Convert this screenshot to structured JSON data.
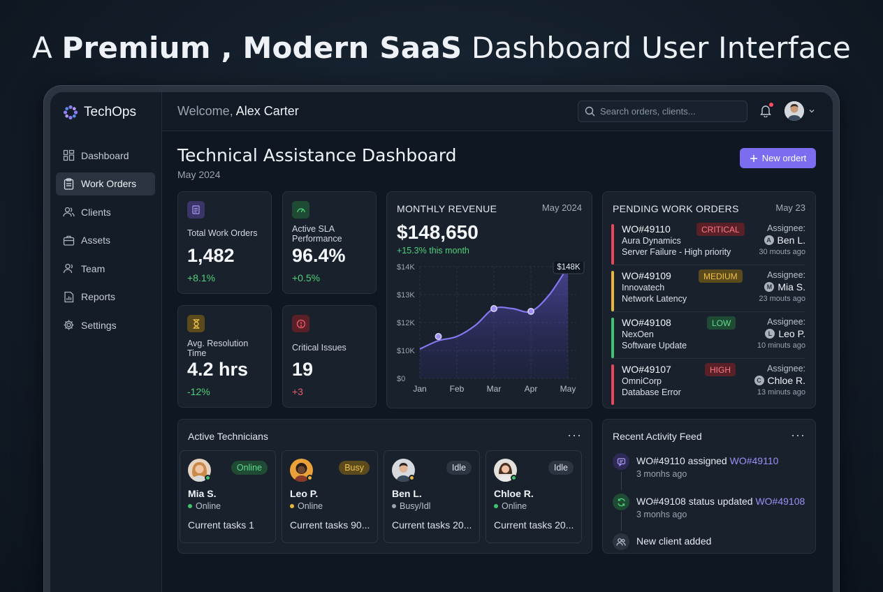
{
  "headline": {
    "prefix": "A ",
    "bold": "Premium , Modern SaaS",
    "suffix": " Dashboard User Interface"
  },
  "brand": {
    "name": "TechOps"
  },
  "sidebar": {
    "items": [
      {
        "label": "Dashboard",
        "icon": "dashboard-icon"
      },
      {
        "label": "Work Orders",
        "icon": "clipboard-icon",
        "active": true
      },
      {
        "label": "Clients",
        "icon": "users-icon"
      },
      {
        "label": "Assets",
        "icon": "briefcase-icon"
      },
      {
        "label": "Team",
        "icon": "team-icon"
      },
      {
        "label": "Reports",
        "icon": "report-icon"
      },
      {
        "label": "Settings",
        "icon": "gear-icon"
      }
    ]
  },
  "topbar": {
    "welcome_prefix": "Welcome, ",
    "user_name": "Alex Carter",
    "search_placeholder": "Search orders, clients...",
    "notification_dot": true
  },
  "page": {
    "title": "Technical Assistance Dashboard",
    "subtitle": "May 2024",
    "new_button": "New ordert"
  },
  "kpis": [
    {
      "label": "Total Work Orders",
      "value": "1,482",
      "delta": "+8.1%",
      "icon": "document-icon"
    },
    {
      "label": "Active SLA Performance",
      "value": "96.4%",
      "delta": "+0.5%",
      "icon": "gauge-icon"
    },
    {
      "label": "Avg. Resolution Time",
      "value": "4.2 hrs",
      "delta": "-12%",
      "icon": "hourglass-icon"
    },
    {
      "label": "Critical Issues",
      "value": "19",
      "delta": "+3",
      "icon": "alert-icon"
    }
  ],
  "revenue": {
    "title": "MONTHLY REVENUE",
    "date": "May 2024",
    "value": "$148,650",
    "delta": "+15.3%",
    "delta_suffix": " this month",
    "tooltip": "$148K"
  },
  "chart_data": {
    "type": "area",
    "title": "MONTHLY REVENUE",
    "categories": [
      "Jan",
      "Feb",
      "Mar",
      "Apr",
      "May"
    ],
    "x": [
      0,
      0.5,
      1,
      1.5,
      2,
      2.5,
      3,
      3.5,
      4
    ],
    "series": [
      {
        "values": [
          10.1,
          10.7,
          11.0,
          11.8,
          12.5,
          12.5,
          12.4,
          13.0,
          14.2
        ]
      }
    ],
    "points": [
      {
        "x": 0.5,
        "y": 11.0
      },
      {
        "x": 2,
        "y": 12.5
      },
      {
        "x": 3,
        "y": 12.4
      },
      {
        "x": 4,
        "y": 14.2
      }
    ],
    "y_ticks": [
      "$0",
      "$10K",
      "$12K",
      "$13K",
      "$14K"
    ],
    "grid": true,
    "color": "#8676f0"
  },
  "pending": {
    "title": "PENDING WORK ORDERS",
    "date": "May 23",
    "assignee_label": "Assignee:",
    "orders": [
      {
        "id": "WO#49110",
        "client": "Aura Dynamics",
        "desc": "Server Failure - High priority",
        "priority": "CRITICAL",
        "assignee": "Ben L.",
        "initial": "A",
        "time": "30 mouts ago",
        "color": "#e8485a"
      },
      {
        "id": "WO#49109",
        "client": "Innovatech",
        "desc": "Network Latency",
        "priority": "MEDIUM",
        "assignee": "Mia S.",
        "initial": "M",
        "time": "23 mouts ago",
        "color": "#e8b73a"
      },
      {
        "id": "WO#49108",
        "client": "NexOen",
        "desc": "Software Update",
        "priority": "LOW",
        "assignee": "Leo P.",
        "initial": "L",
        "time": "10 minuts ago",
        "color": "#3fc46e"
      },
      {
        "id": "WO#49107",
        "client": "OmniCorp",
        "desc": "Database Error",
        "priority": "HIGH",
        "assignee": "Chloe R.",
        "initial": "C",
        "time": "13 minuts ago",
        "color": "#e8485a"
      }
    ]
  },
  "technicians": {
    "title": "Active Technicians",
    "items": [
      {
        "name": "Mia S.",
        "badge": "Online",
        "status": "Online",
        "tasks": "Current tasks 1",
        "dot": "#3fc46e"
      },
      {
        "name": "Leo P.",
        "badge": "Busy",
        "status": "Online",
        "tasks": "Current tasks 90...",
        "dot": "#e8b73a"
      },
      {
        "name": "Ben L.",
        "badge": "Idle",
        "status": "Busy/Idl",
        "tasks": "Current tasks 20...",
        "dot": "#e8b73a"
      },
      {
        "name": "Chloe R.",
        "badge": "Idle",
        "status": "Online",
        "tasks": "Current tasks 20...",
        "dot": "#3fc46e"
      }
    ]
  },
  "activity": {
    "title": "Recent Activity Feed",
    "items": [
      {
        "text": "WO#49110 assigned ",
        "link": "WO#49110",
        "time": "3 monhs ago",
        "icon": "comment-icon"
      },
      {
        "text": "WO#49108 status updated ",
        "link": "WO#49108",
        "time": "3 monhs ago",
        "icon": "refresh-icon"
      },
      {
        "text": "New client added",
        "link": "",
        "time": "",
        "icon": "users-icon"
      }
    ]
  }
}
